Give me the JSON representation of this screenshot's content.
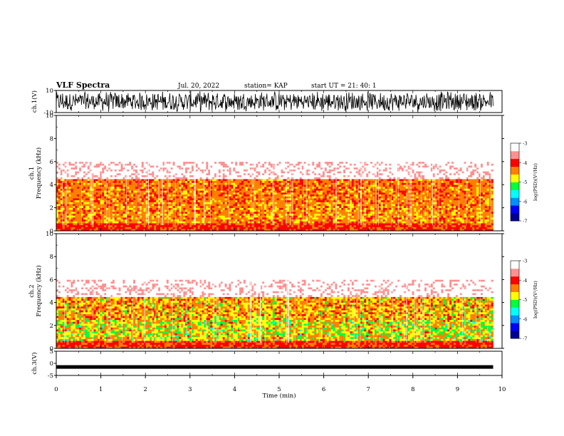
{
  "header": {
    "title": "VLF Spectra",
    "date": "Jul. 20, 2022",
    "station": "station= KAP",
    "start": "start  UT  =   21: 40: 1"
  },
  "chart_data": [
    {
      "id": "ch1-waveform",
      "type": "line",
      "ylabel": "ch.1(V)",
      "ylim": [
        -10,
        10
      ],
      "yticks": [
        {
          "v": 10,
          "label": "10"
        },
        {
          "v": -10,
          "label": "-10"
        }
      ],
      "xlim": [
        0,
        10
      ],
      "data_extent_min": 9.8,
      "note_values": "dense noise spanning nearly full range"
    },
    {
      "id": "ch1-spectrogram",
      "type": "heatmap",
      "ylabel_line1": "ch.1",
      "ylabel_line2": "Frequency (kHz)",
      "ylim": [
        0,
        10
      ],
      "yticks": [
        0,
        2,
        4,
        6,
        8,
        10
      ],
      "xlim": [
        0,
        10
      ],
      "data_extent_min": 9.8,
      "colorbar": {
        "label": "log(PSD)(V²/Hz)",
        "range": [
          -7,
          -3
        ],
        "ticks": [
          "-3",
          "-4",
          "-5",
          "-6",
          "-7"
        ]
      }
    },
    {
      "id": "ch2-spectrogram",
      "type": "heatmap",
      "ylabel_line1": "ch.2",
      "ylabel_line2": "Frequency (kHz)",
      "ylim": [
        0,
        10
      ],
      "yticks": [
        0,
        2,
        4,
        6,
        8,
        10
      ],
      "xlim": [
        0,
        10
      ],
      "data_extent_min": 9.8,
      "colorbar": {
        "label": "log(PSD)(V²/Hz)",
        "range": [
          -7,
          -3
        ],
        "ticks": [
          "-3",
          "-4",
          "-5",
          "-6",
          "-7"
        ]
      }
    },
    {
      "id": "ch3-waveform",
      "type": "line",
      "ylabel": "ch.3(V)",
      "ylim": [
        -5,
        5
      ],
      "yticks": [
        {
          "v": 5,
          "label": "5"
        },
        {
          "v": 0,
          "label": "0"
        },
        {
          "v": -5,
          "label": "-5"
        }
      ],
      "xlim": [
        0,
        10
      ],
      "data_extent_min": 9.8,
      "level_v": -1.5
    }
  ],
  "xaxis": {
    "label": "Time (min)",
    "ticks": [
      "0",
      "1",
      "2",
      "3",
      "4",
      "5",
      "6",
      "7",
      "8",
      "9",
      "10"
    ]
  },
  "colors": {
    "waveform": "#000000",
    "colormap": [
      "#000090",
      "#0000ff",
      "#0090ff",
      "#00ffff",
      "#00ff40",
      "#ffff00",
      "#ff8000",
      "#ff0000",
      "#ff9090",
      "#ffffff"
    ]
  }
}
